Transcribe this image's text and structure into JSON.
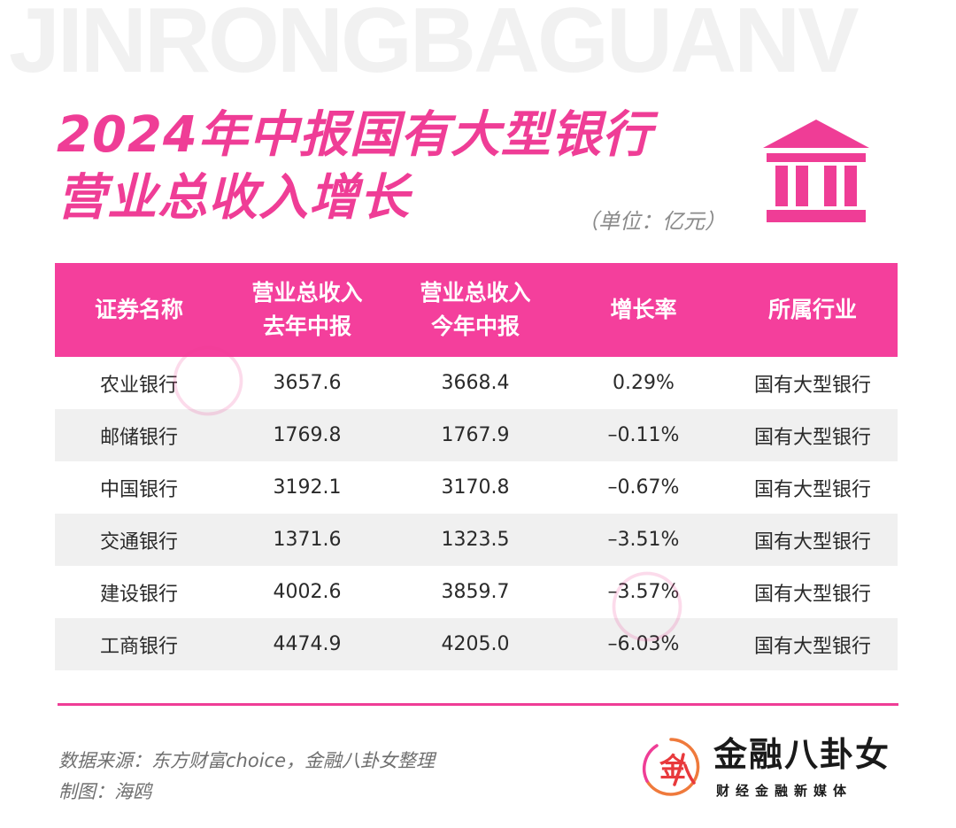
{
  "watermark": "JINRONGBAGUANV",
  "title": {
    "line1": "2024年中报国有大型银行",
    "line2": "营业总收入增长",
    "unit": "（单位：亿元）"
  },
  "table": {
    "headers": [
      [
        "证券名称"
      ],
      [
        "营业总收入",
        "去年中报"
      ],
      [
        "营业总收入",
        "今年中报"
      ],
      [
        "增长率"
      ],
      [
        "所属行业"
      ]
    ],
    "rows": [
      [
        "农业银行",
        "3657.6",
        "3668.4",
        "0.29%",
        "国有大型银行"
      ],
      [
        "邮储银行",
        "1769.8",
        "1767.9",
        "–0.11%",
        "国有大型银行"
      ],
      [
        "中国银行",
        "3192.1",
        "3170.8",
        "–0.67%",
        "国有大型银行"
      ],
      [
        "交通银行",
        "1371.6",
        "1323.5",
        "–3.51%",
        "国有大型银行"
      ],
      [
        "建设银行",
        "4002.6",
        "3859.7",
        "–3.57%",
        "国有大型银行"
      ],
      [
        "工商银行",
        "4474.9",
        "4205.0",
        "–6.03%",
        "国有大型银行"
      ]
    ]
  },
  "footer": {
    "source": "数据来源：东方财富choice，金融八卦女整理",
    "maker": "制图：海鸥"
  },
  "logo": {
    "name": "金融八卦女",
    "tagline": "财经金融新媒体",
    "mark_char": "金"
  },
  "colors": {
    "accent": "#ef3d96",
    "header_bg": "#f43f9c",
    "alt_row": "#f0f0f0"
  },
  "icons": {
    "bank": "bank-building-icon",
    "logo": "logo-mark-icon"
  }
}
